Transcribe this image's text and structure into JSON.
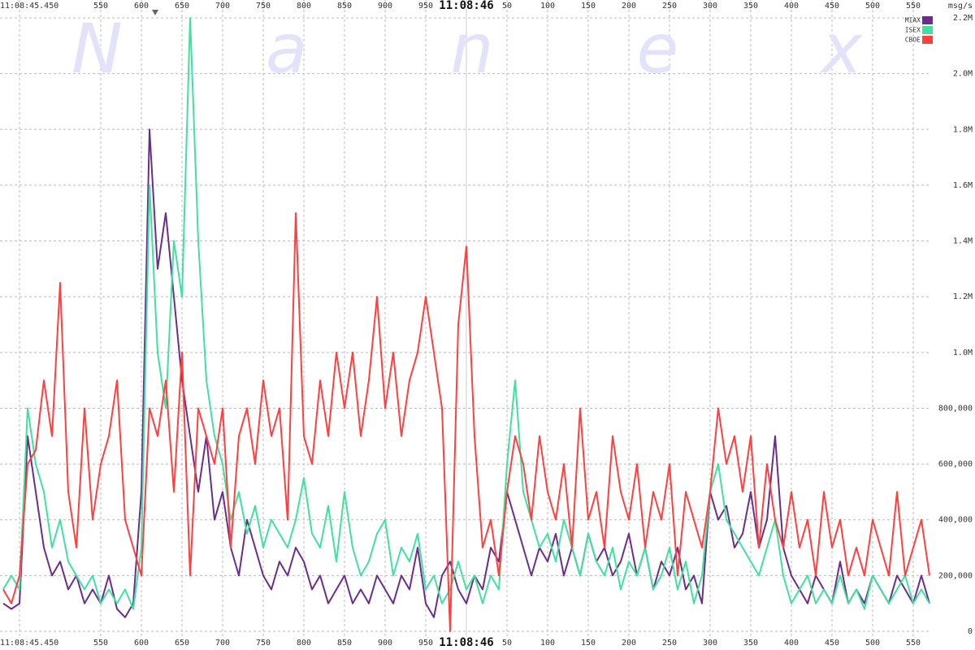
{
  "chart_data": {
    "type": "line",
    "watermark": "Nanex",
    "y_label": "msg/s",
    "legend": "top-right",
    "grid": true,
    "xlim": [
      426,
      1572
    ],
    "ylim": [
      0,
      2200000
    ],
    "xticks": [
      {
        "value": 450,
        "label": "11:08:45.450"
      },
      550,
      600,
      650,
      700,
      750,
      800,
      850,
      900,
      950,
      {
        "value": 1000,
        "label": "11:08:46"
      },
      {
        "value": 1050,
        "label": "50"
      },
      {
        "value": 1100,
        "label": "100"
      },
      {
        "value": 1150,
        "label": "150"
      },
      {
        "value": 1200,
        "label": "200"
      },
      {
        "value": 1250,
        "label": "250"
      },
      {
        "value": 1300,
        "label": "300"
      },
      {
        "value": 1350,
        "label": "350"
      },
      {
        "value": 1400,
        "label": "400"
      },
      {
        "value": 1450,
        "label": "450"
      },
      {
        "value": 1500,
        "label": "500"
      },
      {
        "value": 1550,
        "label": "550"
      }
    ],
    "yticks": [
      0,
      {
        "value": 200000,
        "label": "200,000"
      },
      {
        "value": 400000,
        "label": "400,000"
      },
      {
        "value": 600000,
        "label": "600,000"
      },
      {
        "value": 800000,
        "label": "800,000"
      },
      {
        "value": 1000000,
        "label": "1.0M"
      },
      {
        "value": 1200000,
        "label": "1.2M"
      },
      {
        "value": 1400000,
        "label": "1.4M"
      },
      {
        "value": 1600000,
        "label": "1.6M"
      },
      {
        "value": 1800000,
        "label": "1.8M"
      },
      {
        "value": 2000000,
        "label": "2.0M"
      },
      {
        "value": 2200000,
        "label": "2.2M"
      }
    ],
    "x": [
      430,
      440,
      450,
      460,
      470,
      480,
      490,
      500,
      510,
      520,
      530,
      540,
      550,
      560,
      570,
      580,
      590,
      600,
      610,
      620,
      630,
      640,
      650,
      660,
      670,
      680,
      690,
      700,
      710,
      720,
      730,
      740,
      750,
      760,
      770,
      780,
      790,
      800,
      810,
      820,
      830,
      840,
      850,
      860,
      870,
      880,
      890,
      900,
      910,
      920,
      930,
      940,
      950,
      960,
      970,
      980,
      990,
      1000,
      1010,
      1020,
      1030,
      1040,
      1050,
      1060,
      1070,
      1080,
      1090,
      1100,
      1110,
      1120,
      1130,
      1140,
      1150,
      1160,
      1170,
      1180,
      1190,
      1200,
      1210,
      1220,
      1230,
      1240,
      1250,
      1260,
      1270,
      1280,
      1290,
      1300,
      1310,
      1320,
      1330,
      1340,
      1350,
      1360,
      1370,
      1380,
      1390,
      1400,
      1410,
      1420,
      1430,
      1440,
      1450,
      1460,
      1470,
      1480,
      1490,
      1500,
      1510,
      1520,
      1530,
      1540,
      1550,
      1560,
      1570
    ],
    "series": [
      {
        "name": "MIAX",
        "color": "#6a2e8a",
        "values": [
          100000,
          80000,
          100000,
          700000,
          500000,
          300000,
          200000,
          250000,
          150000,
          200000,
          100000,
          150000,
          100000,
          200000,
          80000,
          50000,
          100000,
          500000,
          1800000,
          1300000,
          1500000,
          1200000,
          900000,
          700000,
          500000,
          700000,
          400000,
          500000,
          300000,
          200000,
          400000,
          300000,
          200000,
          150000,
          250000,
          200000,
          300000,
          250000,
          150000,
          200000,
          100000,
          150000,
          200000,
          100000,
          150000,
          100000,
          200000,
          150000,
          100000,
          200000,
          150000,
          300000,
          100000,
          50000,
          200000,
          250000,
          150000,
          100000,
          200000,
          150000,
          300000,
          250000,
          500000,
          400000,
          300000,
          200000,
          300000,
          250000,
          350000,
          200000,
          300000,
          200000,
          350000,
          250000,
          300000,
          200000,
          250000,
          350000,
          200000,
          300000,
          150000,
          250000,
          200000,
          300000,
          150000,
          200000,
          100000,
          500000,
          400000,
          450000,
          300000,
          350000,
          500000,
          300000,
          400000,
          700000,
          300000,
          200000,
          150000,
          100000,
          200000,
          150000,
          100000,
          250000,
          100000,
          150000,
          100000,
          200000,
          150000,
          100000,
          200000,
          150000,
          100000,
          200000,
          100000
        ]
      },
      {
        "name": "ISEX",
        "color": "#40e0a0",
        "values": [
          150000,
          200000,
          150000,
          800000,
          600000,
          500000,
          300000,
          400000,
          250000,
          200000,
          150000,
          200000,
          100000,
          150000,
          100000,
          150000,
          80000,
          300000,
          1600000,
          1000000,
          800000,
          1400000,
          1200000,
          2200000,
          1400000,
          900000,
          700000,
          600000,
          400000,
          500000,
          350000,
          450000,
          300000,
          400000,
          350000,
          300000,
          400000,
          550000,
          350000,
          300000,
          450000,
          250000,
          500000,
          300000,
          200000,
          250000,
          350000,
          400000,
          200000,
          300000,
          250000,
          350000,
          150000,
          200000,
          100000,
          150000,
          250000,
          150000,
          200000,
          100000,
          200000,
          150000,
          600000,
          900000,
          500000,
          400000,
          300000,
          350000,
          250000,
          400000,
          300000,
          200000,
          350000,
          250000,
          200000,
          300000,
          150000,
          250000,
          200000,
          300000,
          150000,
          200000,
          300000,
          150000,
          250000,
          100000,
          200000,
          500000,
          600000,
          400000,
          350000,
          300000,
          250000,
          200000,
          300000,
          400000,
          200000,
          100000,
          150000,
          200000,
          100000,
          150000,
          100000,
          200000,
          100000,
          150000,
          80000,
          200000,
          150000,
          100000,
          150000,
          200000,
          100000,
          150000,
          100000
        ]
      },
      {
        "name": "CBOE",
        "color": "#ff4040",
        "values": [
          150000,
          100000,
          200000,
          600000,
          650000,
          900000,
          700000,
          1250000,
          500000,
          300000,
          800000,
          400000,
          600000,
          700000,
          900000,
          400000,
          300000,
          200000,
          800000,
          700000,
          900000,
          500000,
          1000000,
          200000,
          800000,
          700000,
          600000,
          800000,
          300000,
          700000,
          800000,
          600000,
          900000,
          700000,
          800000,
          400000,
          1500000,
          700000,
          600000,
          900000,
          700000,
          1000000,
          800000,
          1000000,
          700000,
          900000,
          1200000,
          800000,
          1000000,
          700000,
          900000,
          1000000,
          1200000,
          1000000,
          800000,
          0,
          1100000,
          1380000,
          700000,
          300000,
          400000,
          200000,
          500000,
          700000,
          600000,
          400000,
          700000,
          500000,
          400000,
          600000,
          300000,
          800000,
          400000,
          500000,
          300000,
          700000,
          500000,
          400000,
          600000,
          300000,
          500000,
          400000,
          600000,
          200000,
          500000,
          400000,
          300000,
          500000,
          800000,
          600000,
          700000,
          500000,
          700000,
          300000,
          600000,
          400000,
          300000,
          500000,
          300000,
          400000,
          200000,
          500000,
          300000,
          400000,
          200000,
          300000,
          200000,
          400000,
          300000,
          200000,
          500000,
          200000,
          300000,
          400000,
          200000
        ]
      }
    ]
  }
}
